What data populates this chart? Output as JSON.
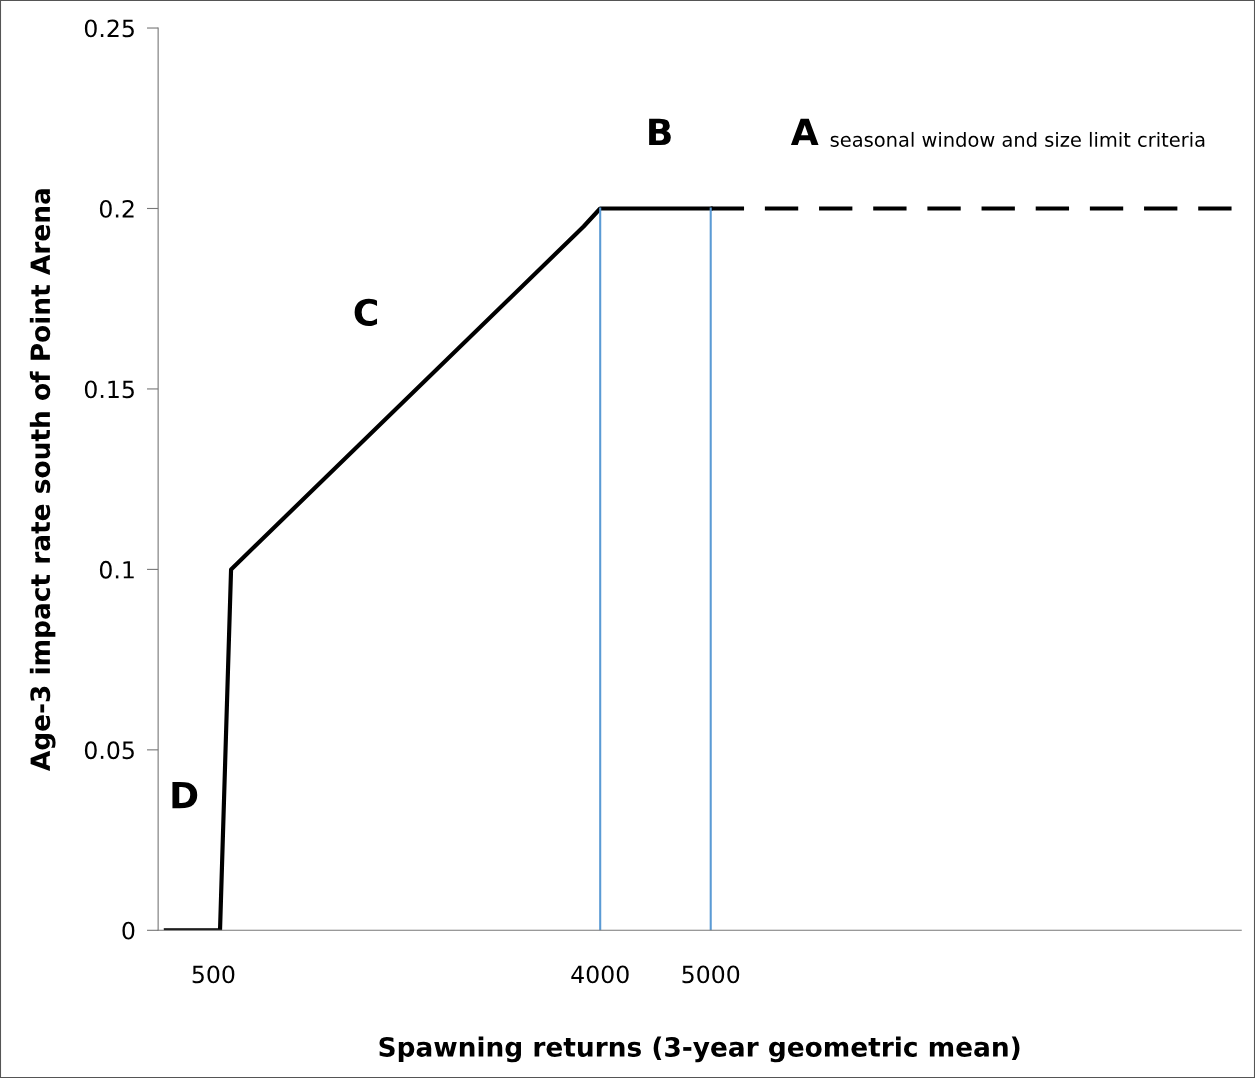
{
  "chart_data": {
    "type": "line",
    "xlabel": "Spawning returns (3-year geometric mean)",
    "ylabel": "Age-3 impact rate south of Point Arena",
    "xlim": [
      0,
      9800
    ],
    "ylim": [
      0,
      0.25
    ],
    "xticks": [
      500,
      4000,
      5000
    ],
    "yticks": [
      0,
      0.05,
      0.1,
      0.15,
      0.2,
      0.25
    ],
    "grid": false,
    "legend": false,
    "marker": "none",
    "series": [
      {
        "color": "#000000",
        "line_style": "solid",
        "x": [
          70,
          560,
          660,
          3850,
          4000,
          5000
        ],
        "values": [
          0,
          0,
          0.1,
          0.195,
          0.2,
          0.2
        ]
      },
      {
        "color": "#000000",
        "line_style": "dashed",
        "x": [
          5000,
          9750
        ],
        "values": [
          0.2,
          0.2
        ]
      },
      {
        "color": "#5b9bd5",
        "line_style": "solid",
        "x": [
          4000,
          4000
        ],
        "values": [
          0,
          0.2
        ]
      },
      {
        "color": "#5b9bd5",
        "line_style": "solid",
        "x": [
          5000,
          5000
        ],
        "values": [
          0,
          0.2
        ]
      }
    ],
    "annotations": [
      "A",
      "B",
      "C",
      "D",
      "seasonal window and size limit criteria"
    ]
  }
}
